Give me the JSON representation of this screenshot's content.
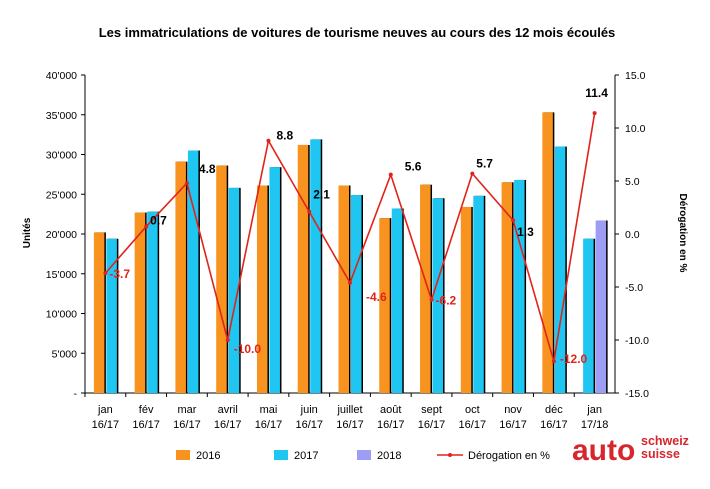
{
  "chart_data": {
    "type": "bar",
    "title": "Les immatriculations de voitures de tourisme neuves au cours des 12 mois écoulés",
    "categories": [
      [
        "jan",
        "16/17"
      ],
      [
        "fév",
        "16/17"
      ],
      [
        "mar",
        "16/17"
      ],
      [
        "avril",
        "16/17"
      ],
      [
        "mai",
        "16/17"
      ],
      [
        "juin",
        "16/17"
      ],
      [
        "juillet",
        "16/17"
      ],
      [
        "août",
        "16/17"
      ],
      [
        "sept",
        "16/17"
      ],
      [
        "oct",
        "16/17"
      ],
      [
        "nov",
        "16/17"
      ],
      [
        "déc",
        "16/17"
      ],
      [
        "jan",
        "17/18"
      ]
    ],
    "series": [
      {
        "name": "2016",
        "type": "bar",
        "color": "#f7931e",
        "values": [
          20200,
          22700,
          29100,
          28600,
          26100,
          31200,
          26100,
          22000,
          26200,
          23400,
          26500,
          35300,
          null
        ]
      },
      {
        "name": "2017",
        "type": "bar",
        "color": "#1fc6f2",
        "values": [
          19400,
          22800,
          30500,
          25800,
          28400,
          31900,
          24900,
          23200,
          24500,
          24800,
          26800,
          31000,
          19400
        ]
      },
      {
        "name": "2018",
        "type": "bar",
        "color": "#9d9df5",
        "values": [
          null,
          null,
          null,
          null,
          null,
          null,
          null,
          null,
          null,
          null,
          null,
          null,
          21700
        ]
      },
      {
        "name": "Dérogation en %",
        "type": "line",
        "axis": "right",
        "color": "#e2231a",
        "values": [
          -3.7,
          0.7,
          4.8,
          -10.0,
          8.8,
          2.1,
          -4.6,
          5.6,
          -6.2,
          5.7,
          1.3,
          -12.0,
          11.4
        ],
        "labels": [
          "-3.7",
          "0.7",
          "4.8",
          "-10.0",
          "8.8",
          "2.1",
          "-4.6",
          "5.6",
          "-6.2",
          "5.7",
          "1.3",
          "-12.0",
          "11.4"
        ]
      }
    ],
    "ylabel": "Unités",
    "y2label": "Dérogation en %",
    "ylim": [
      0,
      40000
    ],
    "y2lim": [
      -15,
      15
    ],
    "yticks": [
      "-",
      "5'000",
      "10'000",
      "15'000",
      "20'000",
      "25'000",
      "30'000",
      "35'000",
      "40'000"
    ],
    "y2ticks": [
      "15.0",
      "10.0",
      "5.0",
      "0.0",
      "-5.0",
      "-10.0",
      "-15.0"
    ],
    "grid": false,
    "legend_position": "bottom"
  },
  "logo": {
    "word": "auto",
    "line1": "schweiz",
    "line2": "suisse"
  }
}
